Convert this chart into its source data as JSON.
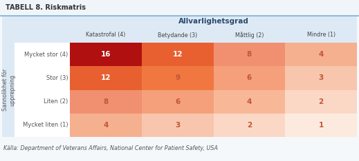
{
  "title": "TABELL 8. Riskmatris",
  "col_header_main": "Allvarlighetsgrad",
  "col_headers": [
    "Katastrofal (4)",
    "Betydande (3)",
    "Måttlig (2)",
    "Mindre (1)"
  ],
  "row_header_main": "Sannolikhet för\nupprepning",
  "row_headers": [
    "Mycket stor (4)",
    "Stor (3)",
    "Liten (2)",
    "Mycket liten (1)"
  ],
  "values": [
    [
      16,
      12,
      8,
      4
    ],
    [
      12,
      9,
      6,
      3
    ],
    [
      8,
      6,
      4,
      2
    ],
    [
      4,
      3,
      2,
      1
    ]
  ],
  "cell_colors": [
    [
      "#b01010",
      "#e86030",
      "#f09070",
      "#f5b090"
    ],
    [
      "#e86030",
      "#f07840",
      "#f5a07a",
      "#f8c5ad"
    ],
    [
      "#f09070",
      "#f5a07a",
      "#f8b898",
      "#fad8c5"
    ],
    [
      "#f5b090",
      "#f8c5ad",
      "#fad8c5",
      "#fdeadf"
    ]
  ],
  "text_color_dark": "#c05535",
  "text_color_light": "#ffffff",
  "source_text": "Källa: Department of Veterans Affairs, National Center for Patient Safety, USA",
  "bg_color": "#f5f8fb",
  "title_bg": "#f0f5fa",
  "table_bg": "#ddeaf5",
  "header_bg": "#ddeaf5",
  "subheader_bg": "#ddeaf5",
  "left_panel_bg": "#ddeaf5",
  "title_color": "#333333",
  "col_header_color": "#444444",
  "row_header_color": "#555555",
  "source_color": "#555555",
  "title_line_color": "#90b8d8"
}
